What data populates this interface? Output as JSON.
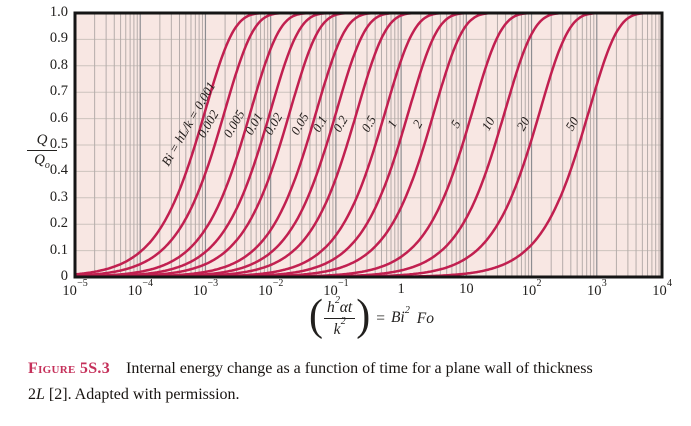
{
  "figure_caption": {
    "label": "Figure 5S.3",
    "line1": "Internal energy change as a function of time for a plane wall of thickness",
    "line2_num": "2",
    "line2_var": "L",
    "line2_rest": " [2]. Adapted with permission."
  },
  "chart_data": {
    "type": "line",
    "title": "",
    "xscale": "log",
    "xlim": [
      1e-05,
      10000
    ],
    "ylim": [
      0,
      1
    ],
    "grid": "on",
    "legend": "labels-on-curves",
    "colors": {
      "plot_bg": "#f8e7e3",
      "curve": "#c12050",
      "grid_h": "#ccc3be",
      "grid_v_minor": "#b5acaa",
      "grid_v_major": "#8d8d91",
      "frame": "#151515",
      "curve_label_text": "#27211f",
      "caption_label": "#c5305a"
    },
    "ylabel": {
      "numerator": "Q",
      "denominator": "Q",
      "denominator_sub": "o"
    },
    "yticks": [
      "1.0",
      "0.9",
      "0.8",
      "0.7",
      "0.6",
      "0.5",
      "0.4",
      "0.3",
      "0.2",
      "0.1",
      "0"
    ],
    "xticks": [
      {
        "text": "10",
        "sup": "−5",
        "value": 1e-05
      },
      {
        "text": "10",
        "sup": "−4",
        "value": 0.0001
      },
      {
        "text": "10",
        "sup": "−3",
        "value": 0.001
      },
      {
        "text": "10",
        "sup": "−2",
        "value": 0.01
      },
      {
        "text": "10",
        "sup": "−1",
        "value": 0.1
      },
      {
        "text": "1",
        "sup": "",
        "value": 1
      },
      {
        "text": "10",
        "sup": "",
        "value": 10
      },
      {
        "text": "10",
        "sup": "2",
        "value": 100
      },
      {
        "text": "10",
        "sup": "3",
        "value": 1000
      },
      {
        "text": "10",
        "sup": "4",
        "value": 10000
      }
    ],
    "xlabel_formula": {
      "frac_num_var": "h",
      "frac_num_exp": "2",
      "frac_num_tail": "αt",
      "frac_den_var": "k",
      "frac_den_exp": "2",
      "equals": "=",
      "rhs_var": "Bi",
      "rhs_exp": "2",
      "rhs_tail": "Fo"
    },
    "curve_model": "Q/Qo ≈ 1 − exp(−ln2·x/x_at_y50), with x = Bi²·Fo",
    "series": [
      {
        "label": "Bi = hL/k = 0.001",
        "bi": 0.001,
        "x_at_y10": 0.000105,
        "x_at_y50": 0.000693,
        "x_at_y90": 0.0023
      },
      {
        "label": "0.002",
        "bi": 0.002,
        "x_at_y10": 0.000211,
        "x_at_y50": 0.001386,
        "x_at_y90": 0.0046
      },
      {
        "label": "0.005",
        "bi": 0.005,
        "x_at_y10": 0.000527,
        "x_at_y50": 0.003466,
        "x_at_y90": 0.0115
      },
      {
        "label": "0.01",
        "bi": 0.01,
        "x_at_y10": 0.00106,
        "x_at_y50": 0.00695,
        "x_at_y90": 0.0231
      },
      {
        "label": "0.02",
        "bi": 0.02,
        "x_at_y10": 0.00211,
        "x_at_y50": 0.0139,
        "x_at_y90": 0.0462
      },
      {
        "label": "0.05",
        "bi": 0.05,
        "x_at_y10": 0.00536,
        "x_at_y50": 0.0353,
        "x_at_y90": 0.117
      },
      {
        "label": "0.1",
        "bi": 0.1,
        "x_at_y10": 0.0109,
        "x_at_y50": 0.0716,
        "x_at_y90": 0.238
      },
      {
        "label": "0.2",
        "bi": 0.2,
        "x_at_y10": 0.0225,
        "x_at_y50": 0.148,
        "x_at_y90": 0.492
      },
      {
        "label": "0.5",
        "bi": 0.5,
        "x_at_y10": 0.0613,
        "x_at_y50": 0.403,
        "x_at_y90": 1.34
      },
      {
        "label": "1",
        "bi": 1,
        "x_at_y10": 0.14,
        "x_at_y50": 0.918,
        "x_at_y90": 3.05
      },
      {
        "label": "2",
        "bi": 2,
        "x_at_y10": 0.344,
        "x_at_y50": 2.26,
        "x_at_y90": 7.51
      },
      {
        "label": "5",
        "bi": 5,
        "x_at_y10": 1.32,
        "x_at_y50": 8.71,
        "x_at_y90": 28.9
      },
      {
        "label": "10",
        "bi": 10,
        "x_at_y10": 4.16,
        "x_at_y50": 27.4,
        "x_at_y90": 91.0
      },
      {
        "label": "20",
        "bi": 20,
        "x_at_y10": 14.3,
        "x_at_y50": 94.2,
        "x_at_y90": 313
      },
      {
        "label": "50",
        "bi": 50,
        "x_at_y10": 80.7,
        "x_at_y50": 531,
        "x_at_y90": 1764
      }
    ]
  }
}
